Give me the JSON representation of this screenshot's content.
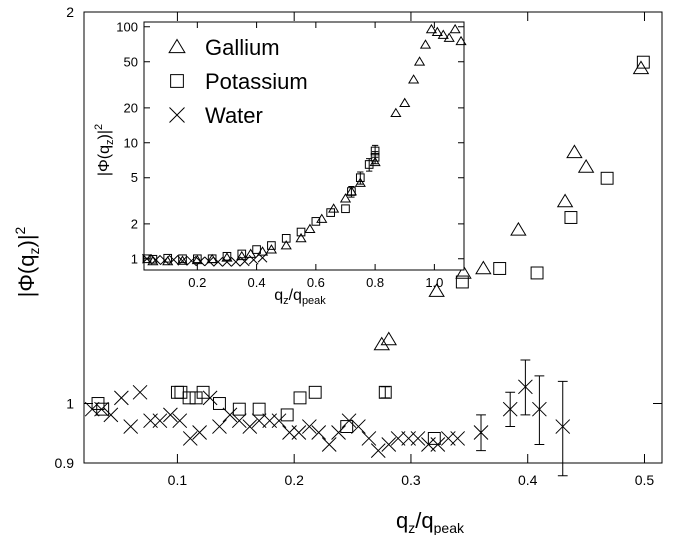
{
  "chart_data": [
    {
      "type": "scatter",
      "xlabel": {
        "main": "q",
        "sub1": "z",
        "sep": "/q",
        "sub2": "peak"
      },
      "ylabel": {
        "pre": "|Φ(q",
        "sub": "z",
        "post": ")|",
        "sup": "2"
      },
      "xlim": [
        0.02,
        0.515
      ],
      "ylim": [
        0.9,
        2.0
      ],
      "yscale": "log",
      "xticks": [
        0.1,
        0.2,
        0.3,
        0.4,
        0.5
      ],
      "xtick_labels": [
        "0.1",
        "0.2",
        "0.3",
        "0.4",
        "0.5"
      ],
      "yticks": [
        0.9,
        1,
        2
      ],
      "ytick_labels": [
        "0.9",
        "1",
        "2"
      ],
      "grid": false,
      "series": [
        {
          "name": "Gallium",
          "marker": "triangle",
          "x": [
            0.275,
            0.281,
            0.322,
            0.345,
            0.362,
            0.392,
            0.432,
            0.44,
            0.45,
            0.497
          ],
          "y": [
            1.11,
            1.12,
            1.22,
            1.26,
            1.27,
            1.36,
            1.43,
            1.56,
            1.52,
            1.81
          ]
        },
        {
          "name": "Potassium",
          "marker": "square",
          "x": [
            0.032,
            0.036,
            0.1,
            0.103,
            0.11,
            0.116,
            0.122,
            0.136,
            0.153,
            0.17,
            0.194,
            0.205,
            0.218,
            0.245,
            0.278,
            0.32,
            0.344,
            0.376,
            0.408,
            0.437,
            0.468,
            0.499
          ],
          "y": [
            1.0,
            0.99,
            1.02,
            1.02,
            1.01,
            1.01,
            1.02,
            1.0,
            0.99,
            0.99,
            0.98,
            1.01,
            1.02,
            0.96,
            1.02,
            0.94,
            1.24,
            1.27,
            1.26,
            1.39,
            1.49,
            1.83
          ],
          "error": [
            0,
            0,
            0,
            0,
            0,
            0,
            0,
            0,
            0,
            0,
            0,
            0,
            0,
            0,
            0.01,
            0,
            0,
            0,
            0,
            0,
            0,
            0
          ]
        },
        {
          "name": "Water",
          "marker": "x",
          "x": [
            0.027,
            0.035,
            0.043,
            0.052,
            0.06,
            0.068,
            0.077,
            0.085,
            0.094,
            0.102,
            0.111,
            0.119,
            0.128,
            0.136,
            0.145,
            0.153,
            0.162,
            0.17,
            0.179,
            0.187,
            0.196,
            0.204,
            0.213,
            0.221,
            0.23,
            0.238,
            0.247,
            0.255,
            0.264,
            0.272,
            0.281,
            0.289,
            0.298,
            0.306,
            0.315,
            0.323,
            0.332,
            0.34,
            0.36,
            0.385,
            0.398,
            0.41,
            0.43
          ],
          "y": [
            0.99,
            0.99,
            0.98,
            1.01,
            0.96,
            1.02,
            0.97,
            0.97,
            0.98,
            0.97,
            0.94,
            0.95,
            1.01,
            0.96,
            0.98,
            0.97,
            0.96,
            0.97,
            0.97,
            0.97,
            0.95,
            0.95,
            0.96,
            0.95,
            0.93,
            0.95,
            0.97,
            0.96,
            0.94,
            0.92,
            0.93,
            0.94,
            0.94,
            0.94,
            0.93,
            0.93,
            0.94,
            0.94,
            0.95,
            0.99,
            1.03,
            0.99,
            0.96
          ],
          "error": [
            0,
            0,
            0,
            0,
            0,
            0,
            0,
            0,
            0,
            0,
            0,
            0,
            0,
            0,
            0,
            0,
            0,
            0,
            0,
            0,
            0,
            0,
            0,
            0,
            0,
            0,
            0,
            0,
            0,
            0,
            0,
            0,
            0,
            0,
            0,
            0,
            0,
            0,
            0.03,
            0.03,
            0.05,
            0.06,
            0.08
          ]
        }
      ]
    },
    {
      "type": "scatter",
      "inset": true,
      "xlabel": {
        "main": "q",
        "sub1": "z",
        "sep": "/q",
        "sub2": "peak"
      },
      "ylabel": {
        "pre": "|Φ(q",
        "sub": "z",
        "post": ")|",
        "sup": "2"
      },
      "xlim": [
        0.02,
        1.1
      ],
      "ylim": [
        0.8,
        110
      ],
      "yscale": "log",
      "xticks": [
        0.2,
        0.4,
        0.6,
        0.8,
        1.0
      ],
      "xtick_labels": [
        "0.2",
        "0.4",
        "0.6",
        "0.8",
        "1.0"
      ],
      "yticks": [
        1,
        2,
        5,
        10,
        20,
        50,
        100
      ],
      "ytick_labels": [
        "1",
        "2",
        "5",
        "10",
        "20",
        "50",
        "100"
      ],
      "grid": false,
      "legend": {
        "position": "top-left",
        "entries": [
          {
            "marker": "triangle",
            "label": "Gallium"
          },
          {
            "marker": "square",
            "label": "Potassium"
          },
          {
            "marker": "x",
            "label": "Water"
          }
        ]
      },
      "series": [
        {
          "name": "Gallium",
          "marker": "triangle",
          "x": [
            0.05,
            0.1,
            0.15,
            0.2,
            0.25,
            0.3,
            0.35,
            0.38,
            0.42,
            0.45,
            0.5,
            0.55,
            0.58,
            0.62,
            0.66,
            0.7,
            0.72,
            0.75,
            0.8,
            0.87,
            0.9,
            0.93,
            0.95,
            0.97,
            0.99,
            1.01,
            1.03,
            1.05,
            1.07,
            1.09
          ],
          "y": [
            0.95,
            0.95,
            0.96,
            0.97,
            0.99,
            1.02,
            1.05,
            1.1,
            1.15,
            1.2,
            1.3,
            1.5,
            1.8,
            2.2,
            2.7,
            3.3,
            3.8,
            4.5,
            6.8,
            18,
            22,
            35,
            50,
            70,
            95,
            90,
            85,
            80,
            95,
            75
          ]
        },
        {
          "name": "Potassium",
          "marker": "square",
          "x": [
            0.03,
            0.05,
            0.1,
            0.15,
            0.2,
            0.25,
            0.3,
            0.35,
            0.4,
            0.45,
            0.5,
            0.55,
            0.6,
            0.65,
            0.7,
            0.72,
            0.75,
            0.78,
            0.8,
            0.8
          ],
          "y": [
            1.0,
            0.99,
            1.01,
            1.0,
            1.0,
            1.0,
            1.05,
            1.1,
            1.2,
            1.3,
            1.5,
            1.7,
            2.1,
            2.5,
            2.7,
            3.8,
            5,
            6.5,
            7.5,
            8.5
          ],
          "error": [
            0,
            0,
            0,
            0,
            0,
            0,
            0,
            0,
            0,
            0,
            0,
            0,
            0,
            0,
            0,
            0.4,
            0.6,
            0.8,
            0.9,
            1.0
          ]
        },
        {
          "name": "Water",
          "marker": "x",
          "x": [
            0.03,
            0.06,
            0.09,
            0.12,
            0.15,
            0.18,
            0.21,
            0.24,
            0.27,
            0.3,
            0.33,
            0.36,
            0.39,
            0.42
          ],
          "y": [
            1.0,
            0.98,
            0.97,
            0.98,
            0.96,
            0.96,
            0.95,
            0.95,
            0.94,
            0.94,
            0.94,
            0.95,
            0.98,
            1.02
          ]
        }
      ]
    }
  ]
}
